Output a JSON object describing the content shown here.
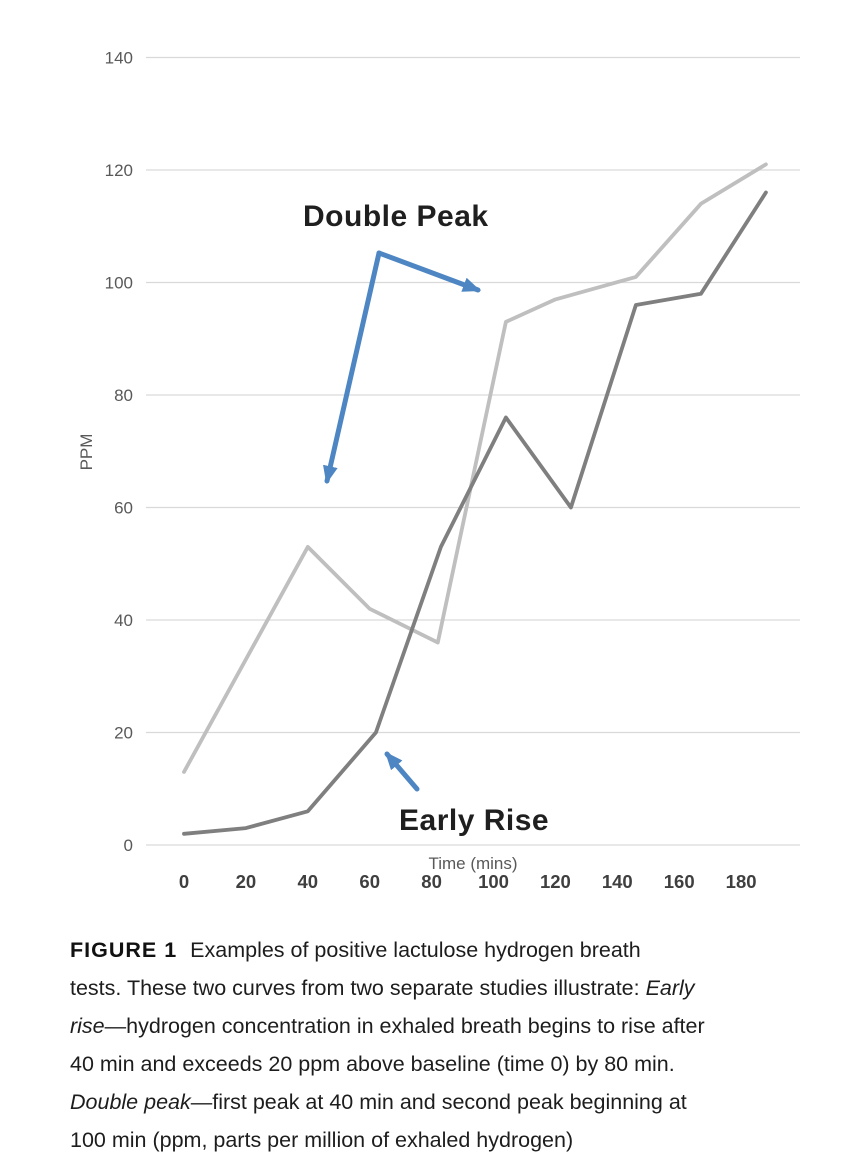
{
  "chart_data": {
    "type": "line",
    "title": "",
    "xlabel": "Time (mins)",
    "ylabel": "PPM",
    "xticks": [
      0,
      20,
      40,
      60,
      80,
      100,
      120,
      140,
      160,
      180
    ],
    "yticks": [
      0,
      20,
      40,
      60,
      80,
      100,
      120,
      140
    ],
    "xlim": [
      0,
      190
    ],
    "ylim": [
      0,
      140
    ],
    "grid": "horizontal-only",
    "legend": "none",
    "series": [
      {
        "name": "double-peak-curve",
        "description": "Light gray curve: first peak at 40 min, second peak beginning at 100 min",
        "color": "#bfbfbf",
        "points": [
          [
            0,
            13
          ],
          [
            40,
            53
          ],
          [
            60,
            42
          ],
          [
            82,
            36
          ],
          [
            104,
            93
          ],
          [
            120,
            97
          ],
          [
            146,
            101
          ],
          [
            167,
            114
          ],
          [
            188,
            121
          ]
        ]
      },
      {
        "name": "early-rise-curve",
        "description": "Dark gray curve: rises after 40 min, exceeds 20 ppm above baseline by 80 min",
        "color": "#7f7f7f",
        "points": [
          [
            0,
            2
          ],
          [
            20,
            3
          ],
          [
            40,
            6
          ],
          [
            62,
            20
          ],
          [
            83,
            53
          ],
          [
            104,
            76
          ],
          [
            125,
            60
          ],
          [
            146,
            96
          ],
          [
            167,
            98
          ],
          [
            188,
            116
          ]
        ]
      }
    ],
    "annotations": [
      {
        "text": "Double Peak",
        "points_to": "first peak (40 min) and second peak (100 min) of light gray curve"
      },
      {
        "text": "Early Rise",
        "points_to": "20 ppm point at 60 min on dark gray curve"
      }
    ],
    "annotation_arrow_color": "#4d86c2",
    "grid_color": "#d9d9d9"
  },
  "caption": {
    "lines": [
      [
        {
          "text": "FIGURE 1",
          "bold": true
        },
        {
          "text": "Examples of positive lactulose hydrogen breath"
        }
      ],
      [
        {
          "text": "tests. These two curves from two separate studies illustrate: "
        },
        {
          "text": "Early",
          "italic": true
        }
      ],
      [
        {
          "text": "rise",
          "italic": true
        },
        {
          "text": "—hydrogen concentration in exhaled breath begins to rise after"
        }
      ],
      [
        {
          "text": "40 min and exceeds 20 ppm above baseline (time 0) by 80 min."
        }
      ],
      [
        {
          "text": "Double peak",
          "italic": true
        },
        {
          "text": "—first peak at 40 min and second peak beginning at"
        }
      ],
      [
        {
          "text": "100 min (ppm, parts per million of exhaled hydrogen)"
        }
      ]
    ]
  }
}
